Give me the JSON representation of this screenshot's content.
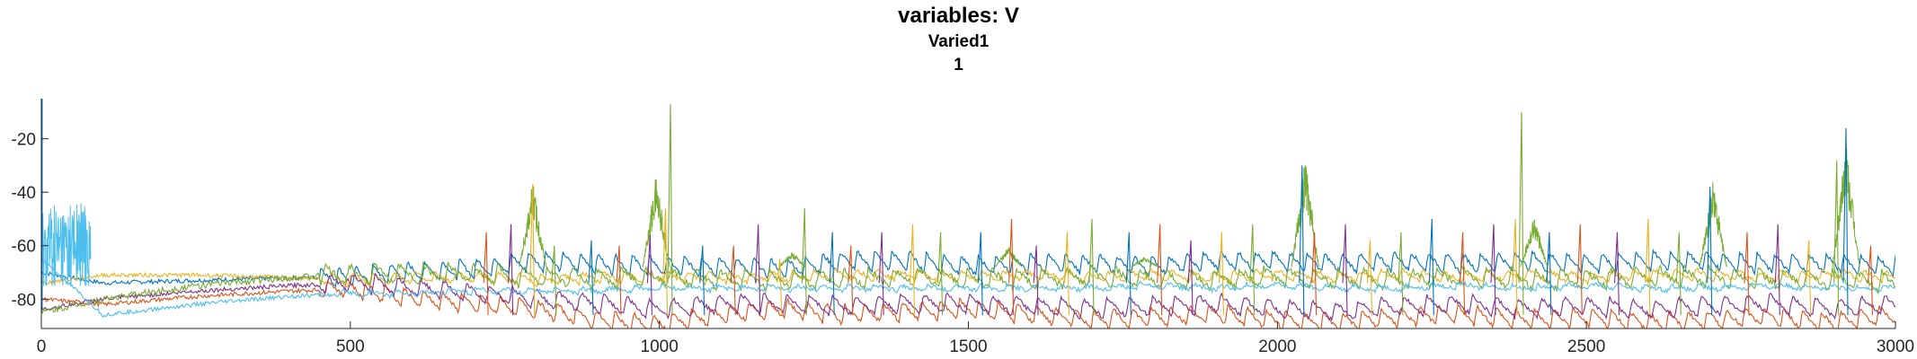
{
  "chart_data": {
    "type": "line",
    "title": "variables: V",
    "subtitle_lines": [
      "Varied1",
      "1"
    ],
    "xlabel": "",
    "ylabel": "",
    "xlim": [
      0,
      3000
    ],
    "ylim": [
      -91,
      -5
    ],
    "x_ticks": [
      0,
      500,
      1000,
      1500,
      2000,
      2500,
      3000
    ],
    "x_tick_labels": [
      "0",
      "500",
      "1000",
      "1500",
      "2000",
      "2500",
      "3000"
    ],
    "y_ticks": [
      -20,
      -40,
      -60,
      -80
    ],
    "y_tick_labels": [
      "-20",
      "-40",
      "-60",
      "-80"
    ],
    "grid": false,
    "legend": "none",
    "series": [
      {
        "color": "#0072BD",
        "x": [
          0,
          100,
          250,
          400,
          500,
          600,
          700,
          800,
          900,
          1000,
          1100,
          1200,
          1300,
          1400,
          1500,
          1600,
          1700,
          1800,
          1900,
          2000,
          2100,
          2200,
          2300,
          2400,
          2500,
          2600,
          2700,
          2800,
          2900,
          3000
        ],
        "y": [
          -70,
          -74,
          -73,
          -72,
          -72,
          -70,
          -69,
          -66,
          -67,
          -68,
          -68,
          -69,
          -66,
          -66,
          -68,
          -67,
          -67,
          -68,
          -66,
          -66,
          -67,
          -66,
          -67,
          -66,
          -67,
          -66,
          -66,
          -67,
          -67,
          -68
        ]
      },
      {
        "color": "#D95319",
        "x": [
          0,
          100,
          250,
          400,
          500,
          600,
          700,
          800,
          900,
          1000,
          1100,
          1200,
          1300,
          1400,
          1500,
          1600,
          1700,
          1800,
          1900,
          2000,
          2100,
          2200,
          2300,
          2400,
          2500,
          2600,
          2700,
          2800,
          2900,
          3000
        ],
        "y": [
          -80,
          -82,
          -79,
          -77,
          -76,
          -80,
          -82,
          -84,
          -88,
          -90,
          -86,
          -84,
          -86,
          -85,
          -84,
          -86,
          -88,
          -87,
          -86,
          -88,
          -89,
          -87,
          -86,
          -88,
          -87,
          -89,
          -88,
          -87,
          -89,
          -86
        ]
      },
      {
        "color": "#EDB120",
        "x": [
          0,
          100,
          250,
          400,
          500,
          600,
          700,
          800,
          900,
          1000,
          1100,
          1200,
          1300,
          1400,
          1500,
          1600,
          1700,
          1800,
          1900,
          2000,
          2100,
          2200,
          2300,
          2400,
          2500,
          2600,
          2700,
          2800,
          2900,
          3000
        ],
        "y": [
          -74,
          -71,
          -71,
          -72,
          -73,
          -72,
          -72,
          -73,
          -72,
          -72,
          -72,
          -72,
          -71,
          -71,
          -72,
          -71,
          -72,
          -71,
          -72,
          -71,
          -72,
          -71,
          -72,
          -71,
          -72,
          -71,
          -71,
          -72,
          -71,
          -72
        ]
      },
      {
        "color": "#7E2F8E",
        "x": [
          0,
          100,
          250,
          400,
          500,
          600,
          700,
          800,
          900,
          1000,
          1100,
          1200,
          1300,
          1400,
          1500,
          1600,
          1700,
          1800,
          1900,
          2000,
          2100,
          2200,
          2300,
          2400,
          2500,
          2600,
          2700,
          2800,
          2900,
          3000
        ],
        "y": [
          -84,
          -80,
          -77,
          -75,
          -74,
          -76,
          -78,
          -80,
          -82,
          -84,
          -82,
          -82,
          -83,
          -82,
          -82,
          -83,
          -84,
          -83,
          -82,
          -84,
          -85,
          -83,
          -82,
          -84,
          -83,
          -84,
          -83,
          -82,
          -84,
          -82
        ]
      },
      {
        "color": "#77AC30",
        "x": [
          0,
          100,
          250,
          400,
          500,
          600,
          700,
          800,
          900,
          1000,
          1100,
          1200,
          1300,
          1400,
          1500,
          1600,
          1700,
          1800,
          1900,
          2000,
          2100,
          2200,
          2300,
          2400,
          2500,
          2600,
          2700,
          2800,
          2900,
          3000
        ],
        "y": [
          -85,
          -80,
          -75,
          -72,
          -71,
          -71,
          -71,
          -72,
          -73,
          -72,
          -73,
          -73,
          -73,
          -72,
          -73,
          -73,
          -72,
          -73,
          -73,
          -72,
          -73,
          -73,
          -72,
          -73,
          -73,
          -72,
          -72,
          -73,
          -73,
          -74
        ]
      },
      {
        "color": "#4DBEEE",
        "x": [
          0,
          100,
          250,
          400,
          500,
          600,
          700,
          800,
          900,
          1000,
          1100,
          1200,
          1300,
          1400,
          1500,
          1600,
          1700,
          1800,
          1900,
          2000,
          2100,
          2200,
          2300,
          2400,
          2500,
          2600,
          2700,
          2800,
          2900,
          3000
        ],
        "y": [
          -65,
          -86,
          -82,
          -79,
          -78,
          -78,
          -77,
          -77,
          -77,
          -76,
          -76,
          -76,
          -76,
          -76,
          -76,
          -76,
          -76,
          -75,
          -76,
          -75,
          -76,
          -76,
          -75,
          -76,
          -75,
          -76,
          -76,
          -75,
          -76,
          -76
        ]
      }
    ],
    "peak_colors": [
      "#D95319",
      "#7E2F8E",
      "#EDB120",
      "#77AC30",
      "#0072BD"
    ],
    "peaks": [
      {
        "x": 720,
        "y": -55
      },
      {
        "x": 760,
        "y": -52
      },
      {
        "x": 795,
        "y": -37
      },
      {
        "x": 830,
        "y": -60
      },
      {
        "x": 890,
        "y": -58
      },
      {
        "x": 935,
        "y": -60
      },
      {
        "x": 985,
        "y": -56
      },
      {
        "x": 1010,
        "y": -46
      },
      {
        "x": 1018,
        "y": -7
      },
      {
        "x": 1070,
        "y": -60
      },
      {
        "x": 1120,
        "y": -60
      },
      {
        "x": 1160,
        "y": -52
      },
      {
        "x": 1195,
        "y": -65
      },
      {
        "x": 1235,
        "y": -46
      },
      {
        "x": 1280,
        "y": -55
      },
      {
        "x": 1310,
        "y": -60
      },
      {
        "x": 1360,
        "y": -55
      },
      {
        "x": 1410,
        "y": -52
      },
      {
        "x": 1455,
        "y": -55
      },
      {
        "x": 1520,
        "y": -55
      },
      {
        "x": 1570,
        "y": -50
      },
      {
        "x": 1610,
        "y": -60
      },
      {
        "x": 1660,
        "y": -55
      },
      {
        "x": 1700,
        "y": -50
      },
      {
        "x": 1760,
        "y": -55
      },
      {
        "x": 1810,
        "y": -52
      },
      {
        "x": 1860,
        "y": -58
      },
      {
        "x": 1910,
        "y": -55
      },
      {
        "x": 1960,
        "y": -52
      },
      {
        "x": 2040,
        "y": -30
      },
      {
        "x": 2060,
        "y": -55
      },
      {
        "x": 2110,
        "y": -52
      },
      {
        "x": 2150,
        "y": -58
      },
      {
        "x": 2200,
        "y": -55
      },
      {
        "x": 2250,
        "y": -50
      },
      {
        "x": 2300,
        "y": -55
      },
      {
        "x": 2350,
        "y": -52
      },
      {
        "x": 2385,
        "y": -50
      },
      {
        "x": 2395,
        "y": -10
      },
      {
        "x": 2440,
        "y": -55
      },
      {
        "x": 2490,
        "y": -52
      },
      {
        "x": 2550,
        "y": -55
      },
      {
        "x": 2600,
        "y": -50
      },
      {
        "x": 2650,
        "y": -55
      },
      {
        "x": 2700,
        "y": -38
      },
      {
        "x": 2760,
        "y": -55
      },
      {
        "x": 2810,
        "y": -52
      },
      {
        "x": 2860,
        "y": -58
      },
      {
        "x": 2905,
        "y": -28
      },
      {
        "x": 2920,
        "y": -16
      },
      {
        "x": 2960,
        "y": -60
      }
    ],
    "green_bursts": [
      {
        "x": 795,
        "y": -35
      },
      {
        "x": 995,
        "y": -32
      },
      {
        "x": 1215,
        "y": -62
      },
      {
        "x": 1565,
        "y": -60
      },
      {
        "x": 1785,
        "y": -64
      },
      {
        "x": 2045,
        "y": -25
      },
      {
        "x": 2415,
        "y": -48
      },
      {
        "x": 2705,
        "y": -35
      },
      {
        "x": 2920,
        "y": -20
      }
    ],
    "transient": {
      "x": [
        0,
        80
      ],
      "y_peak": -42,
      "y_base": -68
    }
  }
}
